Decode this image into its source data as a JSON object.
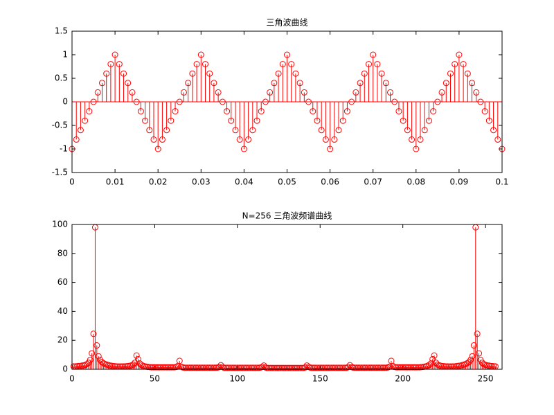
{
  "chart_data": [
    {
      "type": "stem",
      "title": "三角波曲线",
      "color": "#ff0000",
      "x": [
        0,
        0.001,
        0.002,
        0.003,
        0.004,
        0.005,
        0.006,
        0.007,
        0.008,
        0.009,
        0.01,
        0.011,
        0.012,
        0.013,
        0.014,
        0.015,
        0.016,
        0.017,
        0.018,
        0.019,
        0.02,
        0.021,
        0.022,
        0.023,
        0.024,
        0.025,
        0.026,
        0.027,
        0.028,
        0.029,
        0.03,
        0.031,
        0.032,
        0.033,
        0.034,
        0.035,
        0.036,
        0.037,
        0.038,
        0.039,
        0.04,
        0.041,
        0.042,
        0.043,
        0.044,
        0.045,
        0.046,
        0.047,
        0.048,
        0.049,
        0.05,
        0.051,
        0.052,
        0.053,
        0.054,
        0.055,
        0.056,
        0.057,
        0.058,
        0.059,
        0.06,
        0.061,
        0.062,
        0.063,
        0.064,
        0.065,
        0.066,
        0.067,
        0.068,
        0.069,
        0.07,
        0.071,
        0.072,
        0.073,
        0.074,
        0.075,
        0.076,
        0.077,
        0.078,
        0.079,
        0.08,
        0.081,
        0.082,
        0.083,
        0.084,
        0.085,
        0.086,
        0.087,
        0.088,
        0.089,
        0.09,
        0.091,
        0.092,
        0.093,
        0.094,
        0.095,
        0.096,
        0.097,
        0.098,
        0.099,
        0.1
      ],
      "values": [
        -1,
        -0.8,
        -0.6,
        -0.4,
        -0.2,
        0,
        0.2,
        0.4,
        0.6,
        0.8,
        1,
        0.8,
        0.6,
        0.4,
        0.2,
        0,
        -0.2,
        -0.4,
        -0.6,
        -0.8,
        -1,
        -0.8,
        -0.6,
        -0.4,
        -0.2,
        0,
        0.2,
        0.4,
        0.6,
        0.8,
        1,
        0.8,
        0.6,
        0.4,
        0.2,
        0,
        -0.2,
        -0.4,
        -0.6,
        -0.8,
        -1,
        -0.8,
        -0.6,
        -0.4,
        -0.2,
        0,
        0.2,
        0.4,
        0.6,
        0.8,
        1,
        0.8,
        0.6,
        0.4,
        0.2,
        0,
        -0.2,
        -0.4,
        -0.6,
        -0.8,
        -1,
        -0.8,
        -0.6,
        -0.4,
        -0.2,
        0,
        0.2,
        0.4,
        0.6,
        0.8,
        1,
        0.8,
        0.6,
        0.4,
        0.2,
        0,
        -0.2,
        -0.4,
        -0.6,
        -0.8,
        -1,
        -0.8,
        -0.6,
        -0.4,
        -0.2,
        0,
        0.2,
        0.4,
        0.6,
        0.8,
        1,
        0.8,
        0.6,
        0.4,
        0.2,
        0,
        -0.2,
        -0.4,
        -0.6,
        -0.8,
        -1
      ],
      "xlim": [
        0,
        0.1
      ],
      "xticks": [
        0,
        0.01,
        0.02,
        0.03,
        0.04,
        0.05,
        0.06,
        0.07,
        0.08,
        0.09,
        0.1
      ],
      "ylim": [
        -1.5,
        1.5
      ],
      "yticks": [
        -1.5,
        -1,
        -0.5,
        0,
        0.5,
        1,
        1.5
      ]
    },
    {
      "type": "stem",
      "title": "N=256 三角波频谱曲线",
      "color": "#ff0000",
      "x": [
        1,
        2,
        3,
        4,
        5,
        6,
        7,
        8,
        9,
        10,
        11,
        12,
        13,
        14,
        15,
        16,
        17,
        18,
        19,
        20,
        21,
        22,
        23,
        24,
        25,
        26,
        27,
        28,
        29,
        30,
        31,
        32,
        33,
        34,
        35,
        36,
        37,
        38,
        39,
        40,
        41,
        42,
        43,
        44,
        45,
        46,
        47,
        48,
        49,
        50,
        51,
        52,
        53,
        54,
        55,
        56,
        57,
        58,
        59,
        60,
        61,
        62,
        63,
        64,
        65,
        66,
        67,
        68,
        69,
        70,
        71,
        72,
        73,
        74,
        75,
        76,
        77,
        78,
        79,
        80,
        81,
        82,
        83,
        84,
        85,
        86,
        87,
        88,
        89,
        90,
        91,
        92,
        93,
        94,
        95,
        96,
        97,
        98,
        99,
        100,
        101,
        102,
        103,
        104,
        105,
        106,
        107,
        108,
        109,
        110,
        111,
        112,
        113,
        114,
        115,
        116,
        117,
        118,
        119,
        120,
        121,
        122,
        123,
        124,
        125,
        126,
        127,
        128,
        129,
        130,
        131,
        132,
        133,
        134,
        135,
        136,
        137,
        138,
        139,
        140,
        141,
        142,
        143,
        144,
        145,
        146,
        147,
        148,
        149,
        150,
        151,
        152,
        153,
        154,
        155,
        156,
        157,
        158,
        159,
        160,
        161,
        162,
        163,
        164,
        165,
        166,
        167,
        168,
        169,
        170,
        171,
        172,
        173,
        174,
        175,
        176,
        177,
        178,
        179,
        180,
        181,
        182,
        183,
        184,
        185,
        186,
        187,
        188,
        189,
        190,
        191,
        192,
        193,
        194,
        195,
        196,
        197,
        198,
        199,
        200,
        201,
        202,
        203,
        204,
        205,
        206,
        207,
        208,
        209,
        210,
        211,
        212,
        213,
        214,
        215,
        216,
        217,
        218,
        219,
        220,
        221,
        222,
        223,
        224,
        225,
        226,
        227,
        228,
        229,
        230,
        231,
        232,
        233,
        234,
        235,
        236,
        237,
        238,
        239,
        240,
        241,
        242,
        243,
        244,
        245,
        246,
        247,
        248,
        249,
        250,
        251,
        252,
        253,
        254,
        255,
        256
      ],
      "values": [
        2.0,
        2.0,
        2.1,
        2.2,
        2.3,
        2.5,
        2.7,
        3.0,
        3.5,
        4.5,
        6.5,
        11,
        24.5,
        98,
        16.5,
        9,
        6.5,
        5,
        4.2,
        3.6,
        3.2,
        2.9,
        2.6,
        2.4,
        2.2,
        2.1,
        2.0,
        1.9,
        1.9,
        1.9,
        2.0,
        2.0,
        2.1,
        2.2,
        2.4,
        2.7,
        3.2,
        4.5,
        9.5,
        7,
        4,
        3,
        2.4,
        2.0,
        1.8,
        1.6,
        1.5,
        1.4,
        1.4,
        1.4,
        1.4,
        1.4,
        1.4,
        1.4,
        1.4,
        1.4,
        1.4,
        1.4,
        1.4,
        1.4,
        1.4,
        1.4,
        1.6,
        2.2,
        5.8,
        1.8,
        1.3,
        1.1,
        1.1,
        1.1,
        1.1,
        1.1,
        1.1,
        1.1,
        1.1,
        1.1,
        1.1,
        1.1,
        1.1,
        1.1,
        1.1,
        1.1,
        1.1,
        1.1,
        1.1,
        1.1,
        1.1,
        1.2,
        1.5,
        2.8,
        1.6,
        1.0,
        1.0,
        1.0,
        1.0,
        1.0,
        1.0,
        1.0,
        1.0,
        1.0,
        1.0,
        1.0,
        1.0,
        1.0,
        1.0,
        1.0,
        1.0,
        1.0,
        1.0,
        1.0,
        1.0,
        1.0,
        1.0,
        1.2,
        1.6,
        2.6,
        1.3,
        0.9,
        0.9,
        0.9,
        0.9,
        0.9,
        0.9,
        0.9,
        0.9,
        0.9,
        0.9,
        0.9,
        0.9,
        0.9,
        0.9,
        0.9,
        0.9,
        0.9,
        0.9,
        0.9,
        0.9,
        0.9,
        0.9,
        0.9,
        1.3,
        2.6,
        1.6,
        1.2,
        1.0,
        1.0,
        1.0,
        1.0,
        1.0,
        1.0,
        1.0,
        1.0,
        1.0,
        1.0,
        1.0,
        1.0,
        1.0,
        1.0,
        1.0,
        1.0,
        1.0,
        1.0,
        1.0,
        1.0,
        1.0,
        1.0,
        1.6,
        2.8,
        1.5,
        1.2,
        1.1,
        1.1,
        1.1,
        1.1,
        1.1,
        1.1,
        1.1,
        1.1,
        1.1,
        1.1,
        1.1,
        1.1,
        1.1,
        1.1,
        1.1,
        1.1,
        1.1,
        1.1,
        1.1,
        1.1,
        1.3,
        1.8,
        5.8,
        2.2,
        1.6,
        1.4,
        1.4,
        1.4,
        1.4,
        1.4,
        1.4,
        1.4,
        1.4,
        1.4,
        1.4,
        1.4,
        1.4,
        1.4,
        1.4,
        1.4,
        1.5,
        1.6,
        1.8,
        2.0,
        2.4,
        3,
        4,
        7,
        9.5,
        4.5,
        3.2,
        2.7,
        2.4,
        2.2,
        2.1,
        2.0,
        2.0,
        1.9,
        1.9,
        1.9,
        2.0,
        2.1,
        2.2,
        2.4,
        2.6,
        2.9,
        3.2,
        3.6,
        4.2,
        5,
        6.5,
        9,
        16.5,
        98,
        24.5,
        11,
        6.5,
        4.5,
        3.5,
        3.0,
        2.7,
        2.5,
        2.3,
        2.2,
        2.1,
        2.0
      ],
      "xlim": [
        0,
        260
      ],
      "xticks": [
        0,
        50,
        100,
        150,
        200,
        250
      ],
      "ylim": [
        0,
        100
      ],
      "yticks": [
        0,
        20,
        40,
        60,
        80,
        100
      ]
    }
  ]
}
